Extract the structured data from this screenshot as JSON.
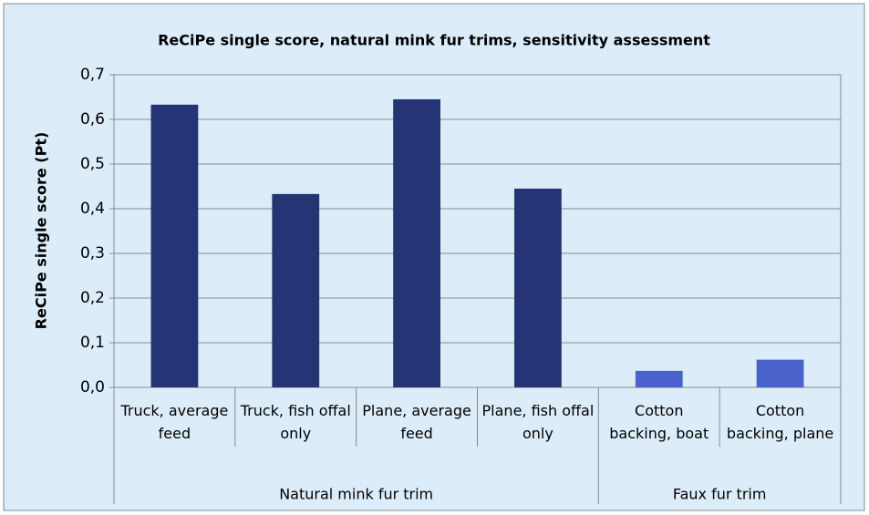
{
  "chart_data": {
    "type": "bar",
    "title": "ReCiPe single score, natural mink fur trims, sensitivity assessment",
    "ylabel": "ReCiPe single score (Pt)",
    "categories": [
      "Truck, average feed",
      "Truck, fish offal only",
      "Plane, average feed",
      "Plane, fish offal only",
      "Cotton backing, boat",
      "Cotton backing, plane"
    ],
    "groups": [
      {
        "name": "Natural mink fur trim",
        "span": 4
      },
      {
        "name": "Faux fur trim",
        "span": 2
      }
    ],
    "values": [
      0.633,
      0.433,
      0.645,
      0.445,
      0.037,
      0.062
    ],
    "colors": [
      "#253474",
      "#253474",
      "#253474",
      "#253474",
      "#4a63cc",
      "#4a63cc"
    ],
    "ylim": [
      0,
      0.7
    ],
    "yticks": [
      {
        "value": 0,
        "label": "0,0"
      },
      {
        "value": 0.1,
        "label": "0,1"
      },
      {
        "value": 0.2,
        "label": "0,2"
      },
      {
        "value": 0.3,
        "label": "0,3"
      },
      {
        "value": 0.4,
        "label": "0,4"
      },
      {
        "value": 0.5,
        "label": "0,5"
      },
      {
        "value": 0.6,
        "label": "0,6"
      },
      {
        "value": 0.7,
        "label": "0,7"
      }
    ],
    "grid": true
  }
}
